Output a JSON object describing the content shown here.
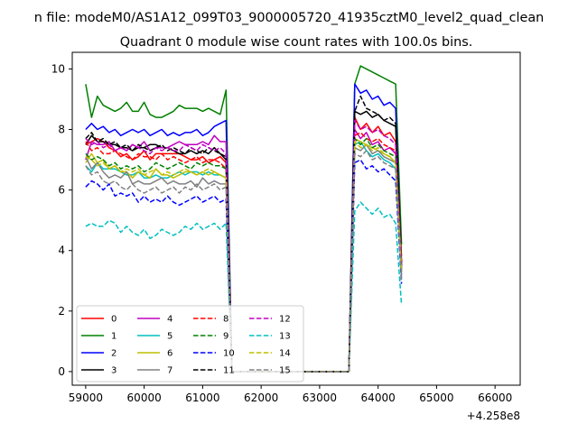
{
  "figure": {
    "suptitle": "n file: modeM0/AS1A12_099T03_9000005720_41935cztM0_level2_quad_clean",
    "offset_label": "+4.258e8"
  },
  "colors": {
    "0": "#ff0000",
    "1": "#008000",
    "2": "#0000ff",
    "3": "#000000",
    "4": "#bf00bf",
    "5": "#00bfbf",
    "6": "#bfbf00",
    "7": "#808080"
  },
  "chart_data": {
    "type": "line",
    "title": "Quadrant 0 module wise count rates with 100.0s bins.",
    "xlabel": "",
    "ylabel": "",
    "x_offset": 425800000,
    "xlim": [
      58770,
      66430
    ],
    "ylim": [
      -0.45,
      10.55
    ],
    "x_ticks": [
      59000,
      60000,
      61000,
      62000,
      63000,
      64000,
      65000,
      66000
    ],
    "y_ticks": [
      0,
      2,
      4,
      6,
      8,
      10
    ],
    "grid": false,
    "legend_placement": "lower-left",
    "x_start": 59000,
    "x_step": 100,
    "gap_start_index": 25,
    "gap_end_index": 45,
    "series": [
      {
        "name": "0",
        "color": "#ff0000",
        "dash": "solid",
        "values": [
          7.5,
          7.6,
          7.7,
          7.6,
          7.4,
          7.3,
          7.1,
          7.2,
          7.0,
          7.1,
          7.3,
          7.0,
          7.2,
          7.2,
          7.2,
          7.2,
          7.2,
          7.1,
          7.0,
          7.0,
          7.1,
          6.9,
          7.0,
          7.1,
          6.9,
          0.0,
          0.0,
          0.0,
          0.0,
          0.0,
          0.0,
          0.0,
          0.0,
          0.0,
          0.0,
          0.0,
          0.0,
          0.0,
          0.0,
          0.0,
          0.0,
          0.0,
          0.0,
          0.0,
          0.0,
          0.0,
          8.4,
          8.0,
          8.2,
          7.9,
          8.1,
          7.8,
          7.9,
          7.6,
          3.8
        ]
      },
      {
        "name": "1",
        "color": "#008000",
        "dash": "solid",
        "values": [
          9.5,
          8.4,
          9.1,
          8.8,
          8.7,
          8.6,
          8.7,
          8.9,
          8.6,
          8.6,
          8.9,
          8.5,
          8.4,
          8.4,
          8.5,
          8.6,
          8.8,
          8.7,
          8.7,
          8.7,
          8.6,
          8.7,
          8.6,
          8.5,
          9.3,
          0.0,
          0.0,
          0.0,
          0.0,
          0.0,
          0.0,
          0.0,
          0.0,
          0.0,
          0.0,
          0.0,
          0.0,
          0.0,
          0.0,
          0.0,
          0.0,
          0.0,
          0.0,
          0.0,
          0.0,
          0.0,
          9.5,
          10.1,
          10.0,
          9.9,
          9.8,
          9.7,
          9.6,
          9.5,
          4.2
        ]
      },
      {
        "name": "2",
        "color": "#0000ff",
        "dash": "solid",
        "values": [
          8.0,
          8.2,
          8.0,
          8.1,
          7.9,
          8.0,
          7.8,
          7.9,
          8.0,
          7.9,
          8.0,
          7.8,
          7.9,
          8.0,
          7.8,
          7.9,
          7.8,
          7.9,
          7.9,
          8.0,
          7.8,
          7.9,
          8.1,
          8.2,
          8.3,
          0.0,
          0.0,
          0.0,
          0.0,
          0.0,
          0.0,
          0.0,
          0.0,
          0.0,
          0.0,
          0.0,
          0.0,
          0.0,
          0.0,
          0.0,
          0.0,
          0.0,
          0.0,
          0.0,
          0.0,
          0.0,
          9.5,
          9.2,
          9.3,
          9.0,
          9.1,
          8.8,
          8.9,
          8.7,
          3.3
        ]
      },
      {
        "name": "3",
        "color": "#000000",
        "dash": "solid",
        "values": [
          7.5,
          7.8,
          7.6,
          7.6,
          7.5,
          7.5,
          7.4,
          7.4,
          7.3,
          7.4,
          7.4,
          7.5,
          7.5,
          7.4,
          7.4,
          7.3,
          7.2,
          7.2,
          7.3,
          7.2,
          7.3,
          7.2,
          7.4,
          7.2,
          7.0,
          0.0,
          0.0,
          0.0,
          0.0,
          0.0,
          0.0,
          0.0,
          0.0,
          0.0,
          0.0,
          0.0,
          0.0,
          0.0,
          0.0,
          0.0,
          0.0,
          0.0,
          0.0,
          0.0,
          0.0,
          0.0,
          8.6,
          8.5,
          8.6,
          8.4,
          8.5,
          8.3,
          8.2,
          8.1,
          3.5
        ]
      },
      {
        "name": "4",
        "color": "#bf00bf",
        "dash": "solid",
        "values": [
          7.0,
          7.6,
          7.5,
          7.5,
          7.6,
          7.3,
          7.4,
          7.3,
          7.5,
          7.4,
          7.6,
          7.3,
          7.4,
          7.4,
          7.4,
          7.5,
          7.6,
          7.5,
          7.5,
          7.5,
          7.6,
          7.5,
          7.8,
          7.6,
          7.6,
          0.0,
          0.0,
          0.0,
          0.0,
          0.0,
          0.0,
          0.0,
          0.0,
          0.0,
          0.0,
          0.0,
          0.0,
          0.0,
          0.0,
          0.0,
          0.0,
          0.0,
          0.0,
          0.0,
          0.0,
          0.0,
          8.0,
          7.7,
          7.9,
          7.5,
          7.6,
          7.3,
          7.4,
          7.2,
          3.5
        ]
      },
      {
        "name": "5",
        "color": "#00bfbf",
        "dash": "solid",
        "values": [
          6.8,
          6.6,
          6.9,
          6.7,
          6.7,
          6.7,
          6.6,
          6.5,
          6.5,
          6.6,
          6.4,
          6.4,
          6.5,
          6.4,
          6.4,
          6.5,
          6.6,
          6.5,
          6.6,
          6.6,
          6.5,
          6.6,
          6.5,
          6.5,
          6.4,
          0.0,
          0.0,
          0.0,
          0.0,
          0.0,
          0.0,
          0.0,
          0.0,
          0.0,
          0.0,
          0.0,
          0.0,
          0.0,
          0.0,
          0.0,
          0.0,
          0.0,
          0.0,
          0.0,
          0.0,
          0.0,
          7.5,
          7.6,
          7.3,
          7.1,
          7.2,
          7.0,
          6.9,
          6.7,
          3.2
        ]
      },
      {
        "name": "6",
        "color": "#bfbf00",
        "dash": "solid",
        "values": [
          6.9,
          7.2,
          6.9,
          7.0,
          6.7,
          6.8,
          6.6,
          6.6,
          6.4,
          6.6,
          6.5,
          6.4,
          6.7,
          6.5,
          6.5,
          6.4,
          6.5,
          6.6,
          6.6,
          6.5,
          6.6,
          6.5,
          6.6,
          6.5,
          6.4,
          0.0,
          0.0,
          0.0,
          0.0,
          0.0,
          0.0,
          0.0,
          0.0,
          0.0,
          0.0,
          0.0,
          0.0,
          0.0,
          0.0,
          0.0,
          0.0,
          0.0,
          0.0,
          0.0,
          0.0,
          0.0,
          7.7,
          7.6,
          7.5,
          7.4,
          7.3,
          7.2,
          7.1,
          6.9,
          3.3
        ]
      },
      {
        "name": "7",
        "color": "#808080",
        "dash": "solid",
        "values": [
          7.1,
          6.7,
          6.9,
          6.6,
          6.4,
          6.5,
          6.4,
          6.6,
          6.2,
          6.3,
          6.2,
          6.2,
          6.3,
          6.4,
          6.2,
          6.3,
          6.2,
          6.2,
          6.3,
          6.1,
          6.4,
          6.2,
          6.3,
          6.2,
          6.2,
          0.0,
          0.0,
          0.0,
          0.0,
          0.0,
          0.0,
          0.0,
          0.0,
          0.0,
          0.0,
          0.0,
          0.0,
          0.0,
          0.0,
          0.0,
          0.0,
          0.0,
          0.0,
          0.0,
          0.0,
          0.0,
          7.4,
          7.3,
          7.5,
          7.2,
          7.3,
          7.1,
          7.0,
          6.9,
          3.1
        ]
      },
      {
        "name": "8",
        "color": "#ff0000",
        "dash": "dashed",
        "values": [
          7.6,
          7.3,
          7.4,
          7.2,
          7.2,
          7.3,
          7.2,
          7.1,
          7.0,
          7.2,
          7.1,
          7.1,
          7.0,
          7.2,
          7.0,
          7.1,
          7.0,
          6.9,
          7.0,
          7.1,
          6.9,
          7.0,
          7.0,
          6.9,
          6.7,
          0.0,
          0.0,
          0.0,
          0.0,
          0.0,
          0.0,
          0.0,
          0.0,
          0.0,
          0.0,
          0.0,
          0.0,
          0.0,
          0.0,
          0.0,
          0.0,
          0.0,
          0.0,
          0.0,
          0.0,
          0.0,
          7.8,
          7.9,
          7.7,
          7.6,
          7.7,
          7.5,
          7.4,
          7.3,
          3.6
        ]
      },
      {
        "name": "9",
        "color": "#008000",
        "dash": "dashed",
        "values": [
          7.2,
          7.0,
          7.1,
          7.0,
          6.8,
          6.9,
          6.7,
          6.8,
          6.7,
          6.8,
          6.6,
          6.7,
          6.9,
          6.8,
          6.7,
          6.8,
          6.9,
          6.8,
          6.7,
          6.9,
          6.8,
          6.9,
          6.8,
          6.8,
          6.7,
          0.0,
          0.0,
          0.0,
          0.0,
          0.0,
          0.0,
          0.0,
          0.0,
          0.0,
          0.0,
          0.0,
          0.0,
          0.0,
          0.0,
          0.0,
          0.0,
          0.0,
          0.0,
          0.0,
          0.0,
          0.0,
          7.7,
          7.5,
          7.7,
          7.4,
          7.5,
          7.3,
          7.2,
          7.1,
          3.4
        ]
      },
      {
        "name": "10",
        "color": "#0000ff",
        "dash": "dashed",
        "values": [
          6.1,
          6.3,
          6.2,
          6.0,
          6.2,
          5.8,
          5.9,
          5.8,
          5.9,
          5.6,
          5.8,
          5.6,
          5.7,
          5.6,
          5.8,
          5.6,
          5.5,
          5.6,
          5.7,
          5.8,
          5.6,
          5.7,
          5.8,
          5.6,
          5.7,
          0.0,
          0.0,
          0.0,
          0.0,
          0.0,
          0.0,
          0.0,
          0.0,
          0.0,
          0.0,
          0.0,
          0.0,
          0.0,
          0.0,
          0.0,
          0.0,
          0.0,
          0.0,
          0.0,
          0.0,
          0.0,
          6.9,
          7.0,
          6.7,
          6.8,
          6.6,
          6.7,
          6.5,
          6.3,
          2.9
        ]
      },
      {
        "name": "11",
        "color": "#000000",
        "dash": "dashed",
        "values": [
          7.7,
          7.9,
          7.6,
          7.7,
          7.5,
          7.6,
          7.4,
          7.5,
          7.3,
          7.5,
          7.4,
          7.3,
          7.4,
          7.5,
          7.3,
          7.4,
          7.3,
          7.2,
          7.4,
          7.3,
          7.2,
          7.4,
          7.3,
          7.2,
          7.1,
          0.0,
          0.0,
          0.0,
          0.0,
          0.0,
          0.0,
          0.0,
          0.0,
          0.0,
          0.0,
          0.0,
          0.0,
          0.0,
          0.0,
          0.0,
          0.0,
          0.0,
          0.0,
          0.0,
          0.0,
          0.0,
          8.6,
          9.1,
          8.7,
          8.6,
          8.5,
          8.3,
          8.4,
          8.2,
          3.6
        ]
      },
      {
        "name": "12",
        "color": "#bf00bf",
        "dash": "dashed",
        "values": [
          7.7,
          7.5,
          7.6,
          7.4,
          7.5,
          7.3,
          7.4,
          7.3,
          7.5,
          7.4,
          7.3,
          7.2,
          7.4,
          7.3,
          7.4,
          7.3,
          7.3,
          7.5,
          7.4,
          7.3,
          7.5,
          7.4,
          7.3,
          7.4,
          7.2,
          0.0,
          0.0,
          0.0,
          0.0,
          0.0,
          0.0,
          0.0,
          0.0,
          0.0,
          0.0,
          0.0,
          0.0,
          0.0,
          0.0,
          0.0,
          0.0,
          0.0,
          0.0,
          0.0,
          0.0,
          0.0,
          8.3,
          8.0,
          8.1,
          7.9,
          8.0,
          7.8,
          7.7,
          7.5,
          3.5
        ]
      },
      {
        "name": "13",
        "color": "#00bfbf",
        "dash": "dashed",
        "values": [
          4.8,
          4.9,
          4.8,
          4.8,
          5.0,
          4.9,
          4.6,
          4.8,
          4.6,
          4.5,
          4.7,
          4.4,
          4.5,
          4.7,
          4.6,
          4.5,
          4.6,
          4.8,
          4.7,
          4.9,
          4.7,
          4.8,
          4.9,
          4.7,
          4.9,
          0.0,
          0.0,
          0.0,
          0.0,
          0.0,
          0.0,
          0.0,
          0.0,
          0.0,
          0.0,
          0.0,
          0.0,
          0.0,
          0.0,
          0.0,
          0.0,
          0.0,
          0.0,
          0.0,
          0.0,
          0.0,
          5.3,
          5.6,
          5.4,
          5.2,
          5.4,
          5.1,
          5.2,
          4.9,
          2.2
        ]
      },
      {
        "name": "14",
        "color": "#bfbf00",
        "dash": "dashed",
        "values": [
          7.1,
          7.0,
          6.8,
          6.9,
          6.7,
          6.8,
          6.6,
          6.7,
          6.6,
          6.7,
          6.5,
          6.6,
          6.7,
          6.5,
          6.6,
          6.5,
          6.6,
          6.7,
          6.6,
          6.5,
          6.6,
          6.7,
          6.6,
          6.5,
          6.4,
          0.0,
          0.0,
          0.0,
          0.0,
          0.0,
          0.0,
          0.0,
          0.0,
          0.0,
          0.0,
          0.0,
          0.0,
          0.0,
          0.0,
          0.0,
          0.0,
          0.0,
          0.0,
          0.0,
          0.0,
          0.0,
          7.6,
          7.4,
          7.5,
          7.3,
          7.4,
          7.2,
          7.1,
          6.9,
          3.3
        ]
      },
      {
        "name": "15",
        "color": "#808080",
        "dash": "dashed",
        "values": [
          6.8,
          6.5,
          6.6,
          6.3,
          6.2,
          6.3,
          6.1,
          6.0,
          6.2,
          6.0,
          5.9,
          6.0,
          6.1,
          5.9,
          6.0,
          6.1,
          5.9,
          6.1,
          6.0,
          6.2,
          6.0,
          6.1,
          6.2,
          6.0,
          6.1,
          0.0,
          0.0,
          0.0,
          0.0,
          0.0,
          0.0,
          0.0,
          0.0,
          0.0,
          0.0,
          0.0,
          0.0,
          0.0,
          0.0,
          0.0,
          0.0,
          0.0,
          0.0,
          0.0,
          0.0,
          0.0,
          7.2,
          7.1,
          7.3,
          7.0,
          7.1,
          6.9,
          6.8,
          6.7,
          3.0
        ]
      }
    ]
  }
}
